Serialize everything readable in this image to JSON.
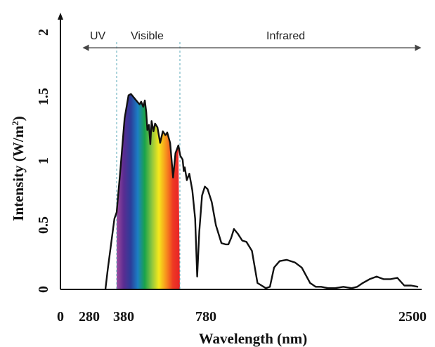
{
  "chart_data": {
    "type": "area",
    "title": "",
    "xlabel": "Wavelength (nm)",
    "ylabel": "Intensity (W/m²)",
    "ylabel_base": "Intensity (W/m",
    "ylabel_sup": "2",
    "ylabel_close": ")",
    "ylim": [
      0,
      2
    ],
    "y_ticks": [
      0,
      0.5,
      1,
      1.5,
      2
    ],
    "y_tick_labels": [
      "0",
      "0.5",
      "1",
      "1.5",
      "2"
    ],
    "x_ticks": [
      {
        "value": 0,
        "label": "0"
      },
      {
        "value": 280,
        "label": "280"
      },
      {
        "value": 380,
        "label": "380"
      },
      {
        "value": 780,
        "label": "780"
      },
      {
        "value": 2500,
        "label": "2500"
      }
    ],
    "regions": [
      {
        "name": "UV",
        "label": "UV"
      },
      {
        "name": "visible",
        "label": "Visible",
        "start": 380,
        "end": 780
      },
      {
        "name": "infrared",
        "label": "Infrared"
      }
    ],
    "spectrum_fill_colors": [
      "#9b4a9e",
      "#5b2c91",
      "#2c3d9a",
      "#1c7fc4",
      "#19a34a",
      "#8dc63f",
      "#f6e81c",
      "#f7941d",
      "#ee3a23",
      "#e82127"
    ],
    "line_color": "#111111",
    "series": [
      {
        "points": [
          [
            280,
            0
          ],
          [
            300,
            0.15
          ],
          [
            330,
            0.35
          ],
          [
            360,
            0.55
          ],
          [
            380,
            0.6
          ],
          [
            405,
            0.95
          ],
          [
            430,
            1.33
          ],
          [
            455,
            1.51
          ],
          [
            470,
            1.52
          ],
          [
            490,
            1.49
          ],
          [
            510,
            1.46
          ],
          [
            525,
            1.44
          ],
          [
            535,
            1.46
          ],
          [
            548,
            1.42
          ],
          [
            558,
            1.47
          ],
          [
            567,
            1.38
          ],
          [
            574,
            1.24
          ],
          [
            584,
            1.28
          ],
          [
            593,
            1.13
          ],
          [
            601,
            1.31
          ],
          [
            613,
            1.23
          ],
          [
            623,
            1.29
          ],
          [
            638,
            1.26
          ],
          [
            655,
            1.14
          ],
          [
            672,
            1.23
          ],
          [
            688,
            1.2
          ],
          [
            700,
            1.22
          ],
          [
            718,
            1.14
          ],
          [
            737,
            0.87
          ],
          [
            752,
            1.06
          ],
          [
            770,
            1.12
          ],
          [
            783,
            1.04
          ],
          [
            800,
            1.01
          ],
          [
            808,
            0.92
          ],
          [
            815,
            0.95
          ],
          [
            830,
            0.85
          ],
          [
            848,
            0.9
          ],
          [
            870,
            0.77
          ],
          [
            890,
            0.55
          ],
          [
            905,
            0.1
          ],
          [
            920,
            0.45
          ],
          [
            940,
            0.73
          ],
          [
            960,
            0.8
          ],
          [
            980,
            0.78
          ],
          [
            1010,
            0.68
          ],
          [
            1040,
            0.5
          ],
          [
            1080,
            0.36
          ],
          [
            1110,
            0.35
          ],
          [
            1130,
            0.35
          ],
          [
            1150,
            0.4
          ],
          [
            1170,
            0.47
          ],
          [
            1200,
            0.43
          ],
          [
            1230,
            0.38
          ],
          [
            1260,
            0.37
          ],
          [
            1300,
            0.3
          ],
          [
            1340,
            0.05
          ],
          [
            1370,
            0.03
          ],
          [
            1400,
            0.01
          ],
          [
            1430,
            0.02
          ],
          [
            1460,
            0.17
          ],
          [
            1500,
            0.22
          ],
          [
            1550,
            0.23
          ],
          [
            1610,
            0.21
          ],
          [
            1660,
            0.17
          ],
          [
            1720,
            0.05
          ],
          [
            1760,
            0.02
          ],
          [
            1800,
            0.02
          ],
          [
            1850,
            0.01
          ],
          [
            1900,
            0.01
          ],
          [
            1960,
            0.02
          ],
          [
            2020,
            0.01
          ],
          [
            2060,
            0.02
          ],
          [
            2100,
            0.05
          ],
          [
            2150,
            0.08
          ],
          [
            2200,
            0.1
          ],
          [
            2250,
            0.08
          ],
          [
            2300,
            0.08
          ],
          [
            2350,
            0.09
          ],
          [
            2400,
            0.03
          ],
          [
            2450,
            0.03
          ],
          [
            2500,
            0.02
          ]
        ]
      }
    ]
  }
}
